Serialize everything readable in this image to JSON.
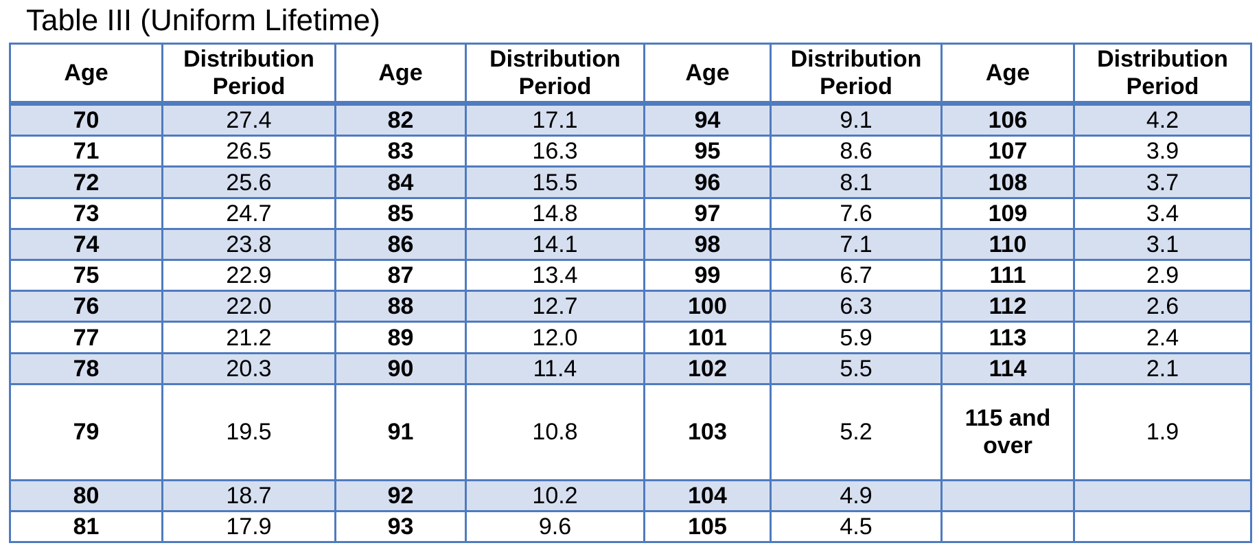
{
  "title": "Table III (Uniform Lifetime)",
  "colors": {
    "border": "#4f7bbf",
    "row_shade": "#d6dff0",
    "background": "#ffffff"
  },
  "headers": {
    "age": "Age",
    "distribution_line1": "Distribution",
    "distribution_line2": "Period"
  },
  "rows": [
    [
      {
        "age": "70",
        "period": "27.4"
      },
      {
        "age": "82",
        "period": "17.1"
      },
      {
        "age": "94",
        "period": "9.1"
      },
      {
        "age": "106",
        "period": "4.2"
      }
    ],
    [
      {
        "age": "71",
        "period": "26.5"
      },
      {
        "age": "83",
        "period": "16.3"
      },
      {
        "age": "95",
        "period": "8.6"
      },
      {
        "age": "107",
        "period": "3.9"
      }
    ],
    [
      {
        "age": "72",
        "period": "25.6"
      },
      {
        "age": "84",
        "period": "15.5"
      },
      {
        "age": "96",
        "period": "8.1"
      },
      {
        "age": "108",
        "period": "3.7"
      }
    ],
    [
      {
        "age": "73",
        "period": "24.7"
      },
      {
        "age": "85",
        "period": "14.8"
      },
      {
        "age": "97",
        "period": "7.6"
      },
      {
        "age": "109",
        "period": "3.4"
      }
    ],
    [
      {
        "age": "74",
        "period": "23.8"
      },
      {
        "age": "86",
        "period": "14.1"
      },
      {
        "age": "98",
        "period": "7.1"
      },
      {
        "age": "110",
        "period": "3.1"
      }
    ],
    [
      {
        "age": "75",
        "period": "22.9"
      },
      {
        "age": "87",
        "period": "13.4"
      },
      {
        "age": "99",
        "period": "6.7"
      },
      {
        "age": "111",
        "period": "2.9"
      }
    ],
    [
      {
        "age": "76",
        "period": "22.0"
      },
      {
        "age": "88",
        "period": "12.7"
      },
      {
        "age": "100",
        "period": "6.3"
      },
      {
        "age": "112",
        "period": "2.6"
      }
    ],
    [
      {
        "age": "77",
        "period": "21.2"
      },
      {
        "age": "89",
        "period": "12.0"
      },
      {
        "age": "101",
        "period": "5.9"
      },
      {
        "age": "113",
        "period": "2.4"
      }
    ],
    [
      {
        "age": "78",
        "period": "20.3"
      },
      {
        "age": "90",
        "period": "11.4"
      },
      {
        "age": "102",
        "period": "5.5"
      },
      {
        "age": "114",
        "period": "2.1"
      }
    ],
    [
      {
        "age": "79",
        "period": "19.5"
      },
      {
        "age": "91",
        "period": "10.8"
      },
      {
        "age": "103",
        "period": "5.2"
      },
      {
        "age_line1": "115 and",
        "age_line2": "over",
        "period": "1.9"
      }
    ],
    [
      {
        "age": "80",
        "period": "18.7"
      },
      {
        "age": "92",
        "period": "10.2"
      },
      {
        "age": "104",
        "period": "4.9"
      },
      {
        "age": "",
        "period": ""
      }
    ],
    [
      {
        "age": "81",
        "period": "17.9"
      },
      {
        "age": "93",
        "period": "9.6"
      },
      {
        "age": "105",
        "period": "4.5"
      },
      {
        "age": "",
        "period": ""
      }
    ]
  ]
}
